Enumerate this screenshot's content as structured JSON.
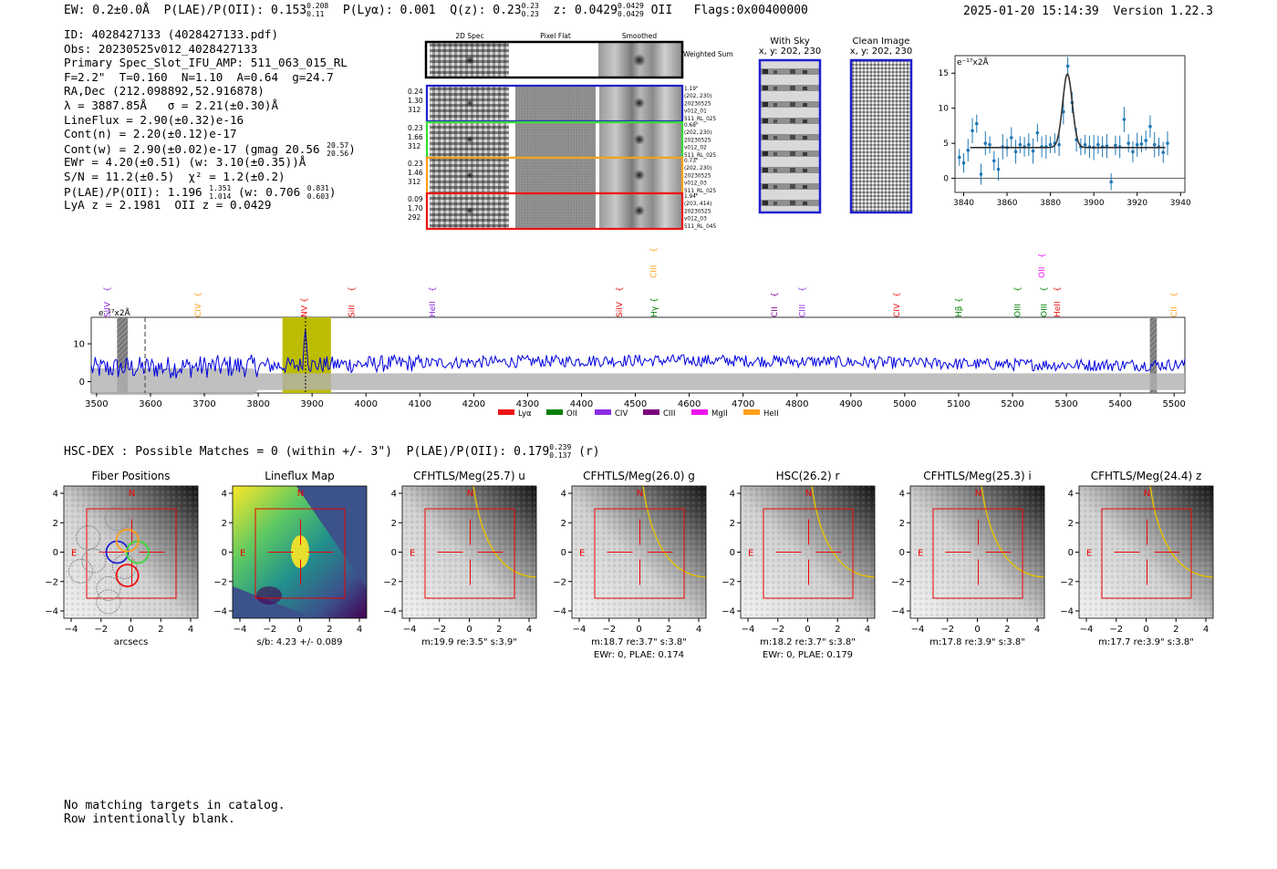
{
  "header": {
    "ew_label": "EW: 0.2±0.0",
    "ew_unit": "Å",
    "plae_label": "P(LAE)/P(OII): 0.153",
    "plae_hi": "0.208",
    "plae_lo": "0.11",
    "plya_label": "P(Lyα): 0.001",
    "q_label": "Q(z): 0.23",
    "q_hi": "0.23",
    "q_lo": "0.23",
    "z_label": "z: 0.0429",
    "z_hi": "0.0429",
    "z_lo": "0.0429",
    "z_line": "OII",
    "flags": "Flags:0x00400000",
    "timestamp": "2025-01-20 15:14:39",
    "version": "Version 1.22.3"
  },
  "info": {
    "id": "ID: 4028427133 (4028427133.pdf)",
    "obs": "Obs: 20230525v012_4028427133",
    "slot": "Primary Spec_Slot_IFU_AMP: 511_063_015_RL",
    "params": "F=2.2\"  T=0.160  N=1.10  A=0.64  g=24.7",
    "radec": "RA,Dec (212.098892,52.916878)",
    "lambda": "λ = 3887.85Å   σ = 2.21(±0.30)Å",
    "lineflux": "LineFlux = 2.90(±0.32)e-16",
    "contn": "Cont(n) = 2.20(±0.12)e-17",
    "contw": "Cont(w) = 2.90(±0.02)e-17 (gmag 20.56",
    "contw_hi": "20.57",
    "contw_lo": "20.56",
    "contw_close": ")",
    "ewr": "EWr = 4.20(±0.51) (w: 3.10(±0.35))Å",
    "sn": "S/N = 11.2(±0.5)  χ² = 1.2(±0.2)",
    "plae": "P(LAE)/P(OII): 1.196",
    "plae_hi": "1.351",
    "plae_lo": "1.014",
    "plae_w": "(w: 0.706",
    "plae_w_hi": "0.831",
    "plae_w_lo": "0.603",
    "plae_close": ")",
    "z": "LyA z = 2.1981  OII z = 0.0429"
  },
  "cutouts": {
    "col_titles": [
      "2D Spec",
      "Pixel Flat",
      "Smoothed"
    ],
    "weighted_sum": "Weighted Sum",
    "rows": [
      {
        "color": "#1f1fd0",
        "left": [
          "0.24",
          "1.30",
          "312"
        ],
        "right": [
          "1.19\"",
          "(202, 230)",
          "20230525",
          "v012_01",
          "511_RL_025"
        ]
      },
      {
        "color": "#33dd33",
        "left": [
          "0.23",
          "1.66",
          "312"
        ],
        "right": [
          "0.68\"",
          "(202, 230)",
          "20230525",
          "v012_02",
          "511_RL_025"
        ]
      },
      {
        "color": "#ff9f1a",
        "left": [
          "0.23",
          "1.46",
          "312"
        ],
        "right": [
          "0.73\"",
          "(202, 230)",
          "20230525",
          "v012_03",
          "511_RL_025"
        ]
      },
      {
        "color": "#ee1111",
        "left": [
          "0.09",
          "1.70",
          "292"
        ],
        "right": [
          "1.94\"",
          "(203, 414)",
          "20230525",
          "v012_03",
          "511_RL_045"
        ]
      }
    ],
    "with_sky": "With Sky",
    "with_sky_coord": "x, y: 202, 230",
    "clean_image": "Clean Image",
    "clean_coord": "x, y: 202, 230"
  },
  "zoom_plot": {
    "unit_label": "e⁻¹⁷x2Å",
    "xticks": [
      "3840",
      "3860",
      "3880",
      "3900",
      "3920",
      "3940"
    ],
    "yticks": [
      "0",
      "5",
      "10",
      "15"
    ]
  },
  "chart_data": [
    {
      "type": "scatter",
      "title": "line fit zoom",
      "ylabel": "e⁻¹⁷x2Å",
      "xlim": [
        3836,
        3942
      ],
      "ylim": [
        -2,
        17.5
      ],
      "points_x": [
        3838,
        3840,
        3842,
        3844,
        3846,
        3848,
        3850,
        3852,
        3854,
        3856,
        3858,
        3860,
        3862,
        3864,
        3866,
        3868,
        3870,
        3872,
        3874,
        3876,
        3878,
        3880,
        3882,
        3884,
        3886,
        3888,
        3890,
        3892,
        3894,
        3896,
        3898,
        3900,
        3902,
        3904,
        3906,
        3908,
        3910,
        3912,
        3914,
        3916,
        3918,
        3920,
        3922,
        3924,
        3926,
        3928,
        3930,
        3932,
        3934
      ],
      "points_y": [
        3.0,
        2.2,
        4.0,
        6.8,
        7.8,
        0.6,
        5.0,
        4.8,
        2.5,
        1.3,
        4.5,
        4.4,
        5.8,
        3.8,
        4.8,
        4.5,
        4.8,
        3.9,
        6.5,
        4.5,
        4.5,
        4.8,
        5.0,
        4.8,
        9.5,
        16.0,
        10.8,
        5.5,
        4.5,
        4.8,
        4.5,
        4.4,
        4.8,
        4.5,
        4.6,
        -0.5,
        4.7,
        4.5,
        8.4,
        5.0,
        3.8,
        4.8,
        4.9,
        5.4,
        7.4,
        4.8,
        4.5,
        3.7,
        5.0
      ],
      "fit": {
        "center": 3887.85,
        "sigma": 2.21,
        "amplitude": 10.5,
        "continuum": 4.4
      },
      "xticks": [
        3840,
        3860,
        3880,
        3900,
        3920,
        3940
      ],
      "yticks": [
        0,
        5,
        10,
        15
      ]
    },
    {
      "type": "line",
      "title": "full spectrum",
      "unit_label": "e⁻¹⁷x2Å",
      "xlim": [
        3490,
        5520
      ],
      "ylim": [
        -3,
        17
      ],
      "xticks": [
        3500,
        3600,
        3700,
        3800,
        3900,
        4000,
        4100,
        4200,
        4300,
        4400,
        4500,
        4600,
        4700,
        4800,
        4900,
        5000,
        5100,
        5200,
        5300,
        5400,
        5500
      ],
      "yticks": [
        0,
        10
      ],
      "highlight": [
        3845,
        3935
      ],
      "line_center": 3887.85,
      "dashed_marker": 3590,
      "masked": [
        [
          3538,
          3558
        ],
        [
          5455,
          5468
        ]
      ],
      "lines": [
        {
          "label": "SiIV",
          "x": 3520,
          "color": "#8a2be2",
          "row": 2
        },
        {
          "label": "CIV",
          "x": 3688,
          "color": "#ff9f1a",
          "row": 2
        },
        {
          "label": "NV",
          "x": 3885,
          "color": "#ee1111",
          "row": 2
        },
        {
          "label": "SiII",
          "x": 3973,
          "color": "#ee1111",
          "row": 2
        },
        {
          "label": "HeII",
          "x": 4123,
          "color": "#8a2be2",
          "row": 2
        },
        {
          "label": "SiIV",
          "x": 4470,
          "color": "#ee1111",
          "row": 2
        },
        {
          "label": "CIII",
          "x": 4534,
          "color": "#ff9f1a",
          "row": 0
        },
        {
          "label": "Hγ",
          "x": 4535,
          "color": "#008000",
          "row": 2
        },
        {
          "label": "CII",
          "x": 4758,
          "color": "#7d007d",
          "row": 2
        },
        {
          "label": "CIII",
          "x": 4810,
          "color": "#8a2be2",
          "row": 2
        },
        {
          "label": "CIV",
          "x": 4985,
          "color": "#ee1111",
          "row": 2
        },
        {
          "label": "Hβ",
          "x": 5100,
          "color": "#008000",
          "row": 2
        },
        {
          "label": "OII",
          "x": 5254,
          "color": "#ee11ee",
          "row": 0
        },
        {
          "label": "OIII",
          "x": 5209,
          "color": "#008000",
          "row": 2
        },
        {
          "label": "OIII",
          "x": 5258,
          "color": "#008000",
          "row": 2
        },
        {
          "label": "HeII",
          "x": 5283,
          "color": "#ee1111",
          "row": 2
        },
        {
          "label": "CII",
          "x": 5500,
          "color": "#ff9f1a",
          "row": 2
        }
      ],
      "legend": [
        {
          "label": "Lyα",
          "color": "#ee1111"
        },
        {
          "label": "OII",
          "color": "#008000"
        },
        {
          "label": "CIV",
          "color": "#8a2be2"
        },
        {
          "label": "CIII",
          "color": "#7d007d"
        },
        {
          "label": "MgII",
          "color": "#ee11ee"
        },
        {
          "label": "HeII",
          "color": "#ff9f1a"
        }
      ]
    }
  ],
  "hsc": {
    "line": "HSC-DEX : Possible Matches = 0 (within +/- 3\")  P(LAE)/P(OII): 0.179",
    "hi": "0.239",
    "lo": "0.137",
    "band": "(r)"
  },
  "panels": [
    {
      "title": "Fiber Positions",
      "caption1": "arcsecs",
      "caption2": "",
      "kind": "fiber"
    },
    {
      "title": "Lineflux Map",
      "caption1": "s/b: 4.23 +/- 0.089",
      "caption2": "",
      "kind": "flux"
    },
    {
      "title": "CFHTLS/Meg(25.7) u",
      "caption1": "m:19.9  re:3.5\"  s:3.9\"",
      "caption2": "",
      "kind": "img"
    },
    {
      "title": "CFHTLS/Meg(26.0) g",
      "caption1": "m:18.7  re:3.7\"  s:3.8\"",
      "caption2": "EWr: 0, PLAE: 0.174",
      "kind": "img"
    },
    {
      "title": "HSC(26.2) r",
      "caption1": "m:18.2  re:3.7\"  s:3.8\"",
      "caption2": "EWr: 0, PLAE: 0.179",
      "kind": "img"
    },
    {
      "title": "CFHTLS/Meg(25.3) i",
      "caption1": "m:17.8  re:3.9\"  s:3.8\"",
      "caption2": "",
      "kind": "img"
    },
    {
      "title": "CFHTLS/Meg(24.4) z",
      "caption1": "m:17.7  re:3.9\"  s:3.8\"",
      "caption2": "",
      "kind": "img"
    }
  ],
  "panel_axes": {
    "xticks": [
      "−4",
      "−2",
      "0",
      "2",
      "4"
    ],
    "yticks": [
      "4",
      "2",
      "0",
      "−2",
      "−4"
    ],
    "north": "N",
    "east": "E"
  },
  "footer": {
    "line1": "No matching targets in catalog.",
    "line2": "Row intentionally blank."
  }
}
